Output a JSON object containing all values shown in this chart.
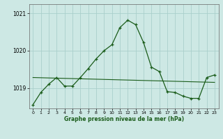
{
  "xlabel": "Graphe pression niveau de la mer (hPa)",
  "background_color": "#cde8e4",
  "grid_color": "#aacfcb",
  "line_color": "#1a5c1a",
  "x_values": [
    0,
    1,
    2,
    3,
    4,
    5,
    6,
    7,
    8,
    9,
    10,
    11,
    12,
    13,
    14,
    15,
    16,
    17,
    18,
    19,
    20,
    21,
    22,
    23
  ],
  "y_values_line1": [
    1018.55,
    1018.88,
    1019.1,
    1019.28,
    1019.05,
    1019.05,
    1019.28,
    1019.52,
    1019.78,
    1020.0,
    1020.16,
    1020.62,
    1020.82,
    1020.7,
    1020.22,
    1019.56,
    1019.44,
    1018.9,
    1018.88,
    1018.78,
    1018.72,
    1018.72,
    1019.28,
    1019.35
  ],
  "trend_x": [
    0,
    23
  ],
  "trend_y": [
    1019.28,
    1019.15
  ],
  "ylim_min": 1018.45,
  "ylim_max": 1021.25,
  "yticks": [
    1019,
    1020,
    1021
  ],
  "ytick_labels": [
    "1019",
    "1020",
    "1021"
  ],
  "xlim_min": -0.5,
  "xlim_max": 23.5
}
